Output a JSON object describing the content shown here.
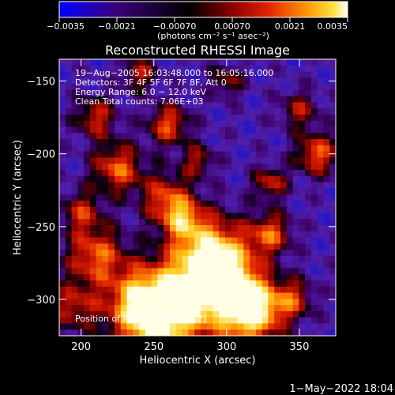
{
  "chart_data": {
    "type": "heatmap",
    "title": "Reconstructed RHESSI Image",
    "xlabel": "Heliocentric X (arcsec)",
    "ylabel": "Heliocentric Y (arcsec)",
    "xlim": [
      185,
      375
    ],
    "ylim": [
      -325,
      -135
    ],
    "x_ticks": [
      {
        "value": 200,
        "label": "200"
      },
      {
        "value": 250,
        "label": "250"
      },
      {
        "value": 300,
        "label": "300"
      },
      {
        "value": 350,
        "label": "350"
      }
    ],
    "y_ticks": [
      {
        "value": -150,
        "label": "−150"
      },
      {
        "value": -200,
        "label": "−200"
      },
      {
        "value": -250,
        "label": "−250"
      },
      {
        "value": -300,
        "label": "−300"
      }
    ],
    "colorbar": {
      "range": [
        -0.0035,
        0.0035
      ],
      "ticks": [
        {
          "value": -0.0035,
          "label": "−0.0035"
        },
        {
          "value": -0.0021,
          "label": "−0.0021"
        },
        {
          "value": -0.0007,
          "label": "−0.00070"
        },
        {
          "value": 0.0007,
          "label": "0.00070"
        },
        {
          "value": 0.0021,
          "label": "0.0021"
        },
        {
          "value": 0.0035,
          "label": "0.0035"
        }
      ],
      "unit_label": "(photons cm⁻² s⁻¹ asec⁻²)",
      "colormap": [
        "#0000ff",
        "#3a0070",
        "#000000",
        "#700000",
        "#d00000",
        "#ff8000",
        "#ffd000",
        "#ffffff"
      ]
    },
    "annotations": [
      "19−Aug−2005 16:03:48.000 to 16:05:16.000",
      "Detectors: 3F 4F 5F 6F 7F 8F, Att 0",
      "Energy Range: 6.0 − 12.0 keV",
      "Clean     Total counts: 7.06E+03"
    ],
    "peak_label": "Position of Peak = [319,−312]",
    "peak": [
      319,
      -312
    ],
    "footer_date": "1−May−2022 18:04"
  }
}
